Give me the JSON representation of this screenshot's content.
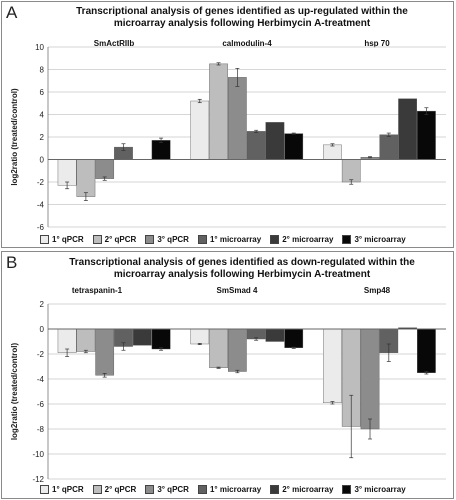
{
  "panels": {
    "a": {
      "letter": "A",
      "title_line1": "Transcriptional analysis of genes identified as up-regulated within the",
      "title_line2": "microarray analysis following Herbimycin A-treatment"
    },
    "b": {
      "letter": "B",
      "title_line1": "Transcriptional analysis of genes identified as down-regulated within the",
      "title_line2": "microarray analysis following Herbimycin A-treatment"
    }
  },
  "legend": [
    "1° qPCR",
    "2° qPCR",
    "3° qPCR",
    "1° microarray",
    "2° microarray",
    "3° microarray"
  ],
  "colors": [
    "#ebebeb",
    "#bdbdbd",
    "#8c8c8c",
    "#616161",
    "#3a3a3a",
    "#080808"
  ],
  "chart_data": [
    {
      "type": "bar",
      "categories": [
        "SmActRIIb",
        "calmodulin-4",
        "hsp 70"
      ],
      "series": [
        {
          "name": "1° qPCR",
          "values": [
            -2.3,
            5.2,
            1.3
          ],
          "errors": [
            0.3,
            0.15,
            0.1
          ]
        },
        {
          "name": "2° qPCR",
          "values": [
            -3.3,
            8.5,
            -2.0
          ],
          "errors": [
            0.35,
            0.1,
            0.2
          ]
        },
        {
          "name": "3° qPCR",
          "values": [
            -1.7,
            7.3,
            0.2
          ],
          "errors": [
            0.15,
            0.8,
            0.05
          ]
        },
        {
          "name": "1° microarray",
          "values": [
            1.1,
            2.5,
            2.2
          ],
          "errors": [
            0.3,
            0.1,
            0.15
          ]
        },
        {
          "name": "2° microarray",
          "values": [
            null,
            3.3,
            5.4
          ],
          "errors": [
            0,
            0,
            0
          ]
        },
        {
          "name": "3° microarray",
          "values": [
            1.7,
            2.3,
            4.3
          ],
          "errors": [
            0.2,
            0.05,
            0.3
          ]
        }
      ],
      "ylabel": "log2ratio (treated/control)",
      "ylim": [
        -6,
        10
      ],
      "yticks": [
        -6,
        -4,
        -2,
        0,
        2,
        4,
        6,
        8,
        10
      ],
      "grid": true
    },
    {
      "type": "bar",
      "categories": [
        "tetraspanin-1",
        "SmSmad 4",
        "Smp48"
      ],
      "series": [
        {
          "name": "1° qPCR",
          "values": [
            -1.9,
            -1.2,
            -5.9
          ],
          "errors": [
            0.3,
            0.05,
            0.1
          ]
        },
        {
          "name": "2° qPCR",
          "values": [
            -1.8,
            -3.1,
            -7.8
          ],
          "errors": [
            0.1,
            0.05,
            2.5
          ]
        },
        {
          "name": "3° qPCR",
          "values": [
            -3.7,
            -3.4,
            -8.0
          ],
          "errors": [
            0.15,
            0.1,
            0.8
          ]
        },
        {
          "name": "1° microarray",
          "values": [
            -1.4,
            -0.8,
            -1.9
          ],
          "errors": [
            0.3,
            0.1,
            0.7
          ]
        },
        {
          "name": "2° microarray",
          "values": [
            -1.3,
            -1.0,
            0.1
          ],
          "errors": [
            0,
            0,
            0
          ]
        },
        {
          "name": "3° microarray",
          "values": [
            -1.6,
            -1.5,
            -3.5
          ],
          "errors": [
            0.1,
            0.05,
            0.1
          ]
        }
      ],
      "ylabel": "log2ratio (treated/control)",
      "ylim": [
        -12,
        2
      ],
      "yticks": [
        -12,
        -10,
        -8,
        -6,
        -4,
        -2,
        0,
        2
      ],
      "grid": true
    }
  ]
}
